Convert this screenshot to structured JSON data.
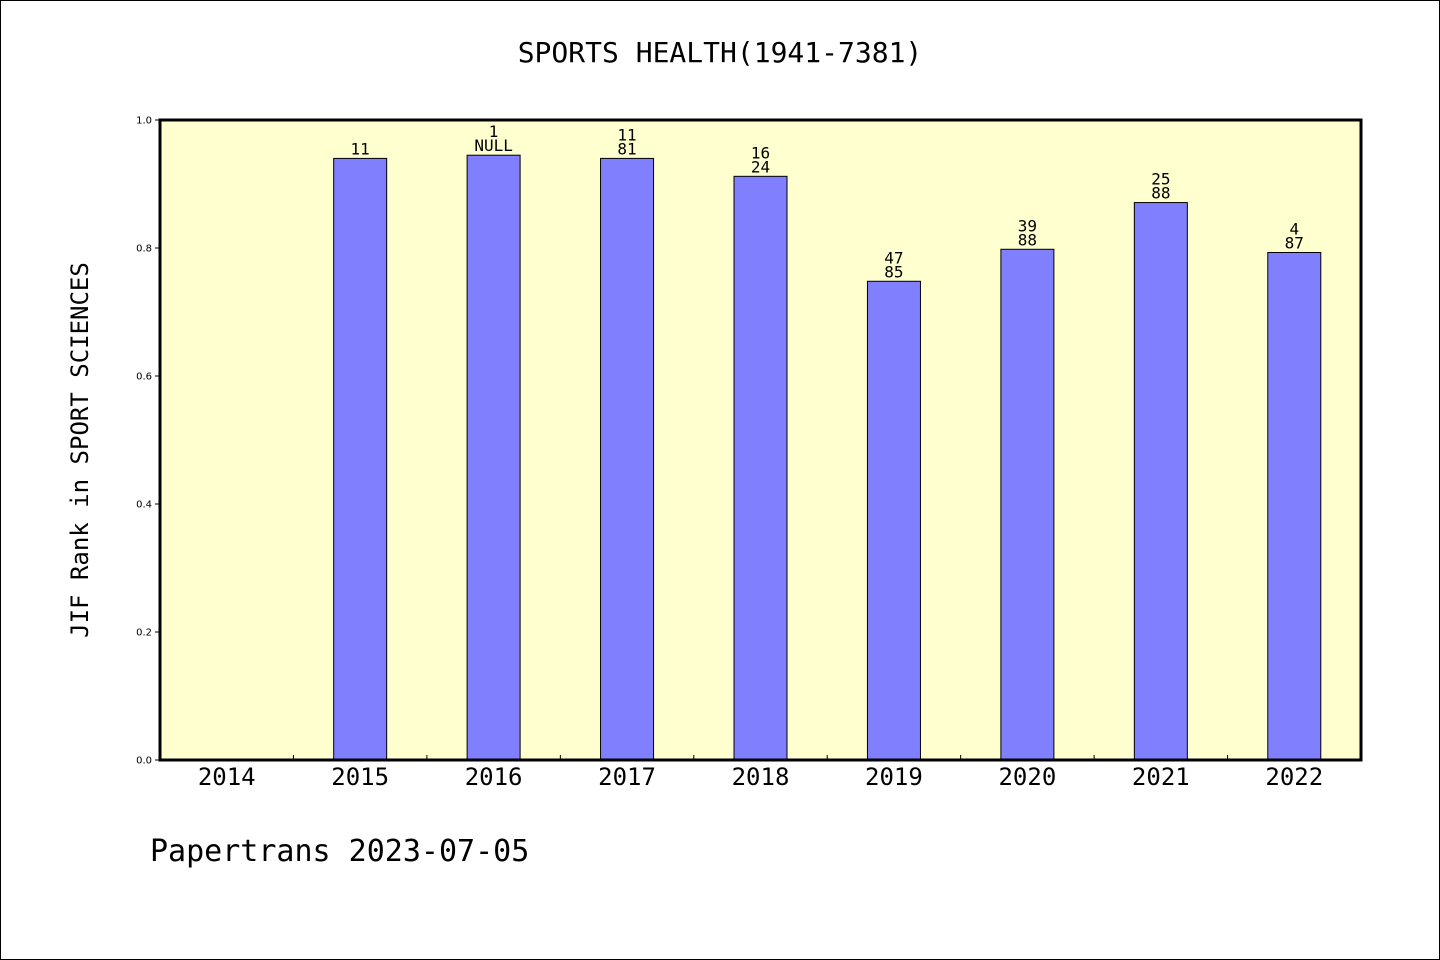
{
  "chart_data": {
    "type": "bar",
    "title": "SPORTS HEALTH(1941-7381)",
    "ylabel": "JIF Rank in SPORT SCIENCES",
    "xlabel": "",
    "ylim": [
      0,
      1.0
    ],
    "yticks": [
      "0.0",
      "0.2",
      "0.4",
      "0.6",
      "0.8",
      "1.0"
    ],
    "categories": [
      "2014",
      "2015",
      "2016",
      "2017",
      "2018",
      "2019",
      "2020",
      "2021",
      "2022"
    ],
    "values": [
      null,
      0.94,
      0.945,
      0.94,
      0.912,
      0.748,
      0.798,
      0.871,
      0.793
    ],
    "bar_labels": [
      null,
      [
        "11"
      ],
      [
        "1",
        "NULL"
      ],
      [
        "11",
        "81"
      ],
      [
        "16",
        "24"
      ],
      [
        "47",
        "85"
      ],
      [
        "39",
        "88"
      ],
      [
        "25",
        "88"
      ],
      [
        "4",
        "87"
      ]
    ],
    "colors": {
      "bar": "#8080ff",
      "plot_background": "#ffffd0",
      "axis": "#000000"
    }
  },
  "footer": "Papertrans 2023-07-05"
}
